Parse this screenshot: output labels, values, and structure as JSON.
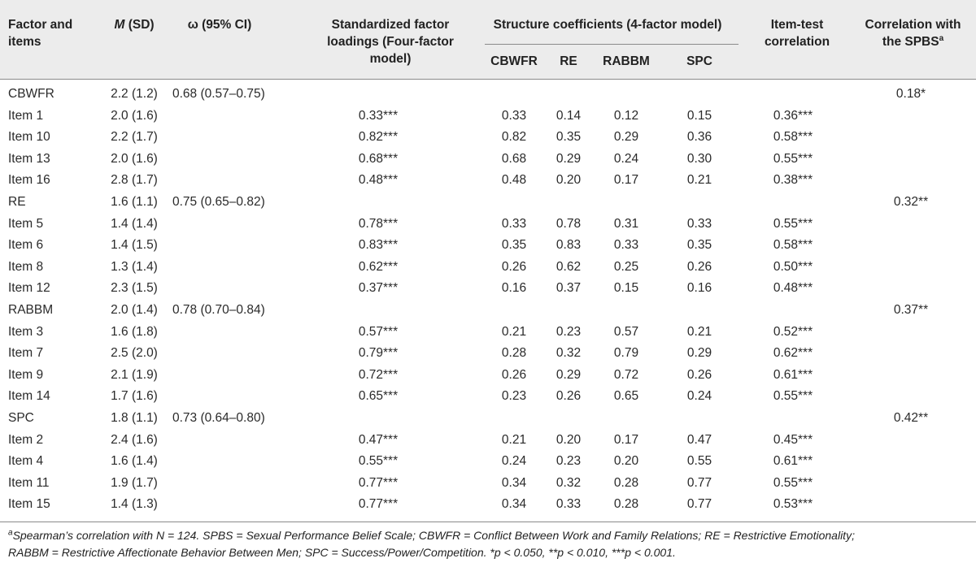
{
  "headers": {
    "factor": [
      "Factor and",
      "items"
    ],
    "m_prefix": "M",
    "m_suffix": " (SD)",
    "omega": "ω (95% CI)",
    "loadings": [
      "Standardized factor",
      "loadings (Four-factor model)"
    ],
    "structure": "Structure coefficients (4-factor model)",
    "itemtest": [
      "Item-test",
      "correlation"
    ],
    "corr": [
      "Correlation with",
      "the SPBS"
    ],
    "corr_sup": "a",
    "sub": [
      "CBWFR",
      "RE",
      "RABBM",
      "SPC"
    ]
  },
  "rows": [
    {
      "label": "CBWFR",
      "m": "2.2 (1.2)",
      "omega": "0.68 (0.57–0.75)",
      "load": "",
      "s1": "",
      "s2": "",
      "s3": "",
      "s4": "",
      "it": "",
      "corr": "0.18*"
    },
    {
      "label": "Item 1",
      "m": "2.0 (1.6)",
      "omega": "",
      "load": "0.33***",
      "s1": "0.33",
      "s2": "0.14",
      "s3": "0.12",
      "s4": "0.15",
      "it": "0.36***",
      "corr": ""
    },
    {
      "label": "Item 10",
      "m": "2.2 (1.7)",
      "omega": "",
      "load": "0.82***",
      "s1": "0.82",
      "s2": "0.35",
      "s3": "0.29",
      "s4": "0.36",
      "it": "0.58***",
      "corr": ""
    },
    {
      "label": "Item 13",
      "m": "2.0 (1.6)",
      "omega": "",
      "load": "0.68***",
      "s1": "0.68",
      "s2": "0.29",
      "s3": "0.24",
      "s4": "0.30",
      "it": "0.55***",
      "corr": ""
    },
    {
      "label": "Item 16",
      "m": "2.8 (1.7)",
      "omega": "",
      "load": "0.48***",
      "s1": "0.48",
      "s2": "0.20",
      "s3": "0.17",
      "s4": "0.21",
      "it": "0.38***",
      "corr": ""
    },
    {
      "label": "RE",
      "m": "1.6 (1.1)",
      "omega": "0.75 (0.65–0.82)",
      "load": "",
      "s1": "",
      "s2": "",
      "s3": "",
      "s4": "",
      "it": "",
      "corr": "0.32**"
    },
    {
      "label": "Item 5",
      "m": "1.4 (1.4)",
      "omega": "",
      "load": "0.78***",
      "s1": "0.33",
      "s2": "0.78",
      "s3": "0.31",
      "s4": "0.33",
      "it": "0.55***",
      "corr": ""
    },
    {
      "label": "Item 6",
      "m": "1.4 (1.5)",
      "omega": "",
      "load": "0.83***",
      "s1": "0.35",
      "s2": "0.83",
      "s3": "0.33",
      "s4": "0.35",
      "it": "0.58***",
      "corr": ""
    },
    {
      "label": "Item 8",
      "m": "1.3 (1.4)",
      "omega": "",
      "load": "0.62***",
      "s1": "0.26",
      "s2": "0.62",
      "s3": "0.25",
      "s4": "0.26",
      "it": "0.50***",
      "corr": ""
    },
    {
      "label": "Item 12",
      "m": "2.3 (1.5)",
      "omega": "",
      "load": "0.37***",
      "s1": "0.16",
      "s2": "0.37",
      "s3": "0.15",
      "s4": "0.16",
      "it": "0.48***",
      "corr": ""
    },
    {
      "label": "RABBM",
      "m": "2.0 (1.4)",
      "omega": "0.78 (0.70–0.84)",
      "load": "",
      "s1": "",
      "s2": "",
      "s3": "",
      "s4": "",
      "it": "",
      "corr": "0.37**"
    },
    {
      "label": "Item 3",
      "m": "1.6 (1.8)",
      "omega": "",
      "load": "0.57***",
      "s1": "0.21",
      "s2": "0.23",
      "s3": "0.57",
      "s4": "0.21",
      "it": "0.52***",
      "corr": ""
    },
    {
      "label": "Item 7",
      "m": "2.5 (2.0)",
      "omega": "",
      "load": "0.79***",
      "s1": "0.28",
      "s2": "0.32",
      "s3": "0.79",
      "s4": "0.29",
      "it": "0.62***",
      "corr": ""
    },
    {
      "label": "Item 9",
      "m": "2.1 (1.9)",
      "omega": "",
      "load": "0.72***",
      "s1": "0.26",
      "s2": "0.29",
      "s3": "0.72",
      "s4": "0.26",
      "it": "0.61***",
      "corr": ""
    },
    {
      "label": "Item 14",
      "m": "1.7 (1.6)",
      "omega": "",
      "load": "0.65***",
      "s1": "0.23",
      "s2": "0.26",
      "s3": "0.65",
      "s4": "0.24",
      "it": "0.55***",
      "corr": ""
    },
    {
      "label": "SPC",
      "m": "1.8 (1.1)",
      "omega": "0.73 (0.64–0.80)",
      "load": "",
      "s1": "",
      "s2": "",
      "s3": "",
      "s4": "",
      "it": "",
      "corr": "0.42**"
    },
    {
      "label": "Item 2",
      "m": "2.4 (1.6)",
      "omega": "",
      "load": "0.47***",
      "s1": "0.21",
      "s2": "0.20",
      "s3": "0.17",
      "s4": "0.47",
      "it": "0.45***",
      "corr": ""
    },
    {
      "label": "Item 4",
      "m": "1.6 (1.4)",
      "omega": "",
      "load": "0.55***",
      "s1": "0.24",
      "s2": "0.23",
      "s3": "0.20",
      "s4": "0.55",
      "it": "0.61***",
      "corr": ""
    },
    {
      "label": "Item 11",
      "m": "1.9 (1.7)",
      "omega": "",
      "load": "0.77***",
      "s1": "0.34",
      "s2": "0.32",
      "s3": "0.28",
      "s4": "0.77",
      "it": "0.55***",
      "corr": ""
    },
    {
      "label": "Item 15",
      "m": "1.4 (1.3)",
      "omega": "",
      "load": "0.77***",
      "s1": "0.34",
      "s2": "0.33",
      "s3": "0.28",
      "s4": "0.77",
      "it": "0.53***",
      "corr": ""
    }
  ],
  "footnote": {
    "sup": "a",
    "line1": "Spearman’s correlation with N = 124. SPBS = Sexual Performance Belief Scale; CBWFR = Conflict Between Work and Family Relations; RE = Restrictive Emotionality;",
    "line2": "RABBM = Restrictive Affectionate Behavior Between Men; SPC = Success/Power/Competition. *p < 0.050, **p < 0.010, ***p < 0.001."
  }
}
